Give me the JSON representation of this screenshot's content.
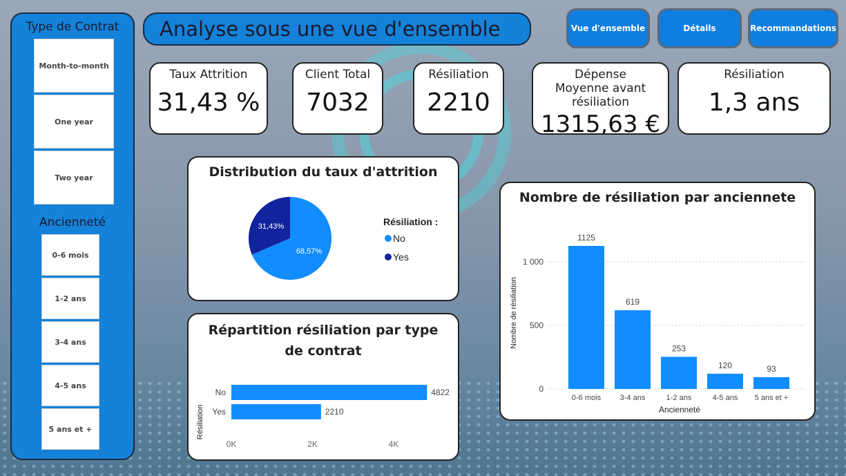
{
  "header": {
    "title": "Analyse sous une vue d'ensemble"
  },
  "nav": {
    "overview": "Vue d'ensemble",
    "details": "Détails",
    "recommendations": "Recommandations"
  },
  "sidebar": {
    "contract_title": "Type de Contrat",
    "contracts": [
      "Month-to-month",
      "One year",
      "Two year"
    ],
    "tenure_title": "Ancienneté",
    "tenures": [
      "0-6 mois",
      "1-2 ans",
      "3-4 ans",
      "4-5 ans",
      "5 ans et +"
    ]
  },
  "kpis": [
    {
      "label": "Taux Attrition",
      "value": "31,43 %"
    },
    {
      "label": "Client Total",
      "value": "7032"
    },
    {
      "label": "Résiliation",
      "value": "2210"
    },
    {
      "label": "Dépense Moyenne avant résiliation",
      "value": "1315,63 €"
    },
    {
      "label": "Résiliation",
      "value": "1,3 ans"
    }
  ],
  "colors": {
    "primary": "#1482d9",
    "no": "#118dff",
    "yes": "#12239e"
  },
  "chart_data": [
    {
      "type": "pie",
      "title": "Distribution du taux d'attrition",
      "legend_title": "Résiliation :",
      "categories": [
        "No",
        "Yes"
      ],
      "values": [
        68.57,
        31.43
      ],
      "labels": [
        "68,57%",
        "31,43%"
      ],
      "legend": "right"
    },
    {
      "type": "bar",
      "orientation": "horizontal",
      "title": "Répartition résiliation par type de contrat",
      "ylabel": "Résiliation",
      "categories": [
        "No",
        "Yes"
      ],
      "values": [
        4822,
        2210
      ],
      "xticks": [
        "0K",
        "2K",
        "4K"
      ],
      "xlim": [
        0,
        5000
      ]
    },
    {
      "type": "bar",
      "title": "Nombre de résiliation par anciennete",
      "xlabel": "Ancienneté",
      "ylabel": "Nombre de résiliation",
      "categories": [
        "0-6 mois",
        "3-4 ans",
        "1-2 ans",
        "4-5 ans",
        "5 ans et +"
      ],
      "values": [
        1125,
        619,
        253,
        120,
        93
      ],
      "yticks": [
        "0",
        "500",
        "1 000"
      ],
      "ylim": [
        0,
        1250
      ],
      "grid": true
    }
  ]
}
